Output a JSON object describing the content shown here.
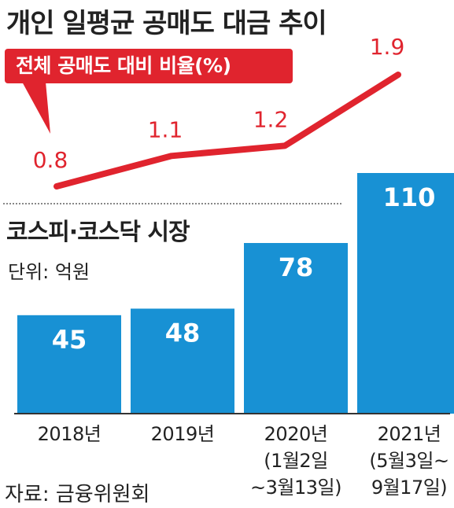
{
  "title": "개인 일평균 공매도 대금 추이",
  "badge": "전체 공매도 대비 비율(%)",
  "subtitle": "코스피·코스닥 시장",
  "unit": "단위: 억원",
  "source": "자료: 금융위원회",
  "colors": {
    "bar": "#1891d4",
    "line": "#e0242e",
    "badge": "#e0242e"
  },
  "chart_data": {
    "type": "bar",
    "categories": [
      "2018년",
      "2019년",
      "2020년",
      "2021년"
    ],
    "category_notes": [
      "",
      "",
      "(1월2일\n~3월13일)",
      "(5월3일~\n9월17일)"
    ],
    "series": [
      {
        "values": [
          45,
          48,
          78,
          110
        ],
        "labels": [
          "45",
          "48",
          "78",
          "110"
        ]
      }
    ],
    "line": {
      "title": "전체 공매도 대비 비율(%)",
      "values": [
        0.8,
        1.1,
        1.2,
        1.9
      ],
      "labels": [
        "0.8",
        "1.1",
        "1.2",
        "1.9"
      ]
    }
  }
}
